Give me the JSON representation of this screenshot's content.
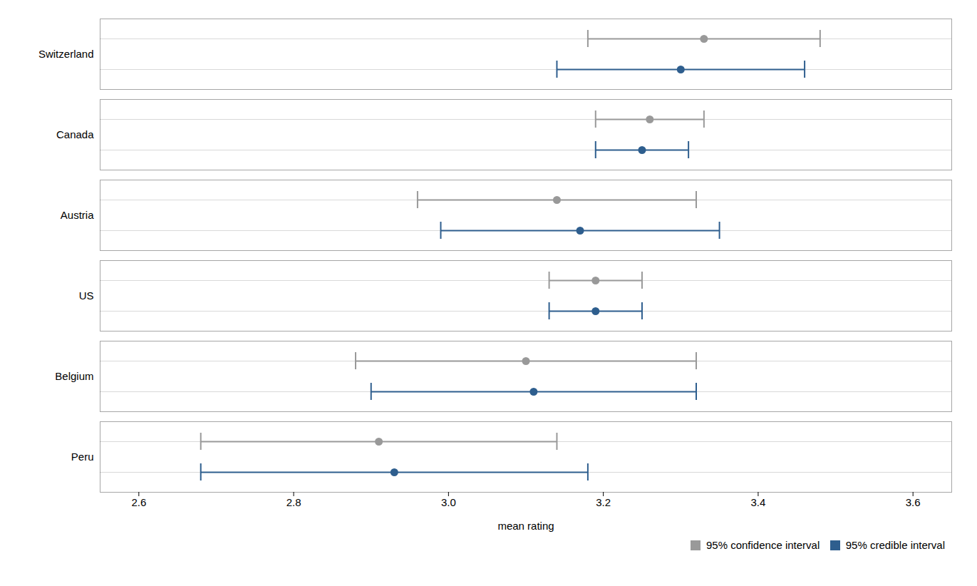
{
  "chart_data": {
    "type": "interval",
    "orientation": "horizontal",
    "xlabel": "mean rating",
    "categories": [
      "Switzerland",
      "Canada",
      "Austria",
      "US",
      "Belgium",
      "Peru"
    ],
    "series": [
      {
        "name": "95% confidence interval",
        "color": "#999999",
        "values": [
          3.33,
          3.26,
          3.14,
          3.19,
          3.1,
          2.91
        ],
        "lower": [
          3.18,
          3.19,
          2.96,
          3.13,
          2.88,
          2.68
        ],
        "upper": [
          3.48,
          3.33,
          3.32,
          3.25,
          3.32,
          3.14
        ]
      },
      {
        "name": "95% credible interval",
        "color": "#2E5E8E",
        "values": [
          3.3,
          3.25,
          3.17,
          3.19,
          3.11,
          2.93
        ],
        "lower": [
          3.14,
          3.19,
          2.99,
          3.13,
          2.9,
          2.68
        ],
        "upper": [
          3.46,
          3.31,
          3.35,
          3.25,
          3.32,
          3.18
        ]
      }
    ],
    "xlim": [
      2.55,
      3.65
    ],
    "xticks": [
      2.6,
      2.8,
      {
        "value": 3.0,
        "label": "3.0"
      },
      3.2,
      3.4,
      3.6
    ],
    "grid": true,
    "legend": "lower right"
  }
}
